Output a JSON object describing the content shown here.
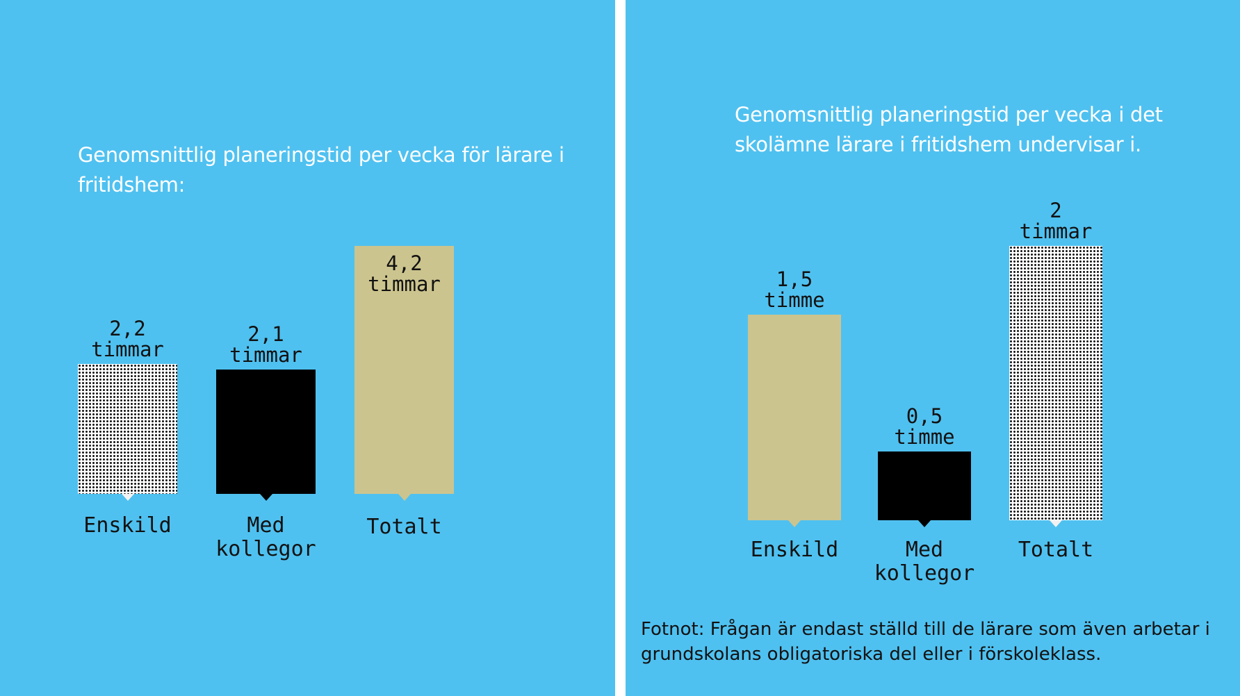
{
  "chart_data": [
    {
      "type": "bar",
      "title": "Genomsnittlig planeringstid per vecka för lärare i fritidshem:",
      "categories": [
        "Enskild",
        "Med\nkollegor",
        "Totalt"
      ],
      "values": [
        2.2,
        2.1,
        4.2
      ],
      "value_numbers": [
        "2,2",
        "2,1",
        "4,2"
      ],
      "value_units": [
        "timmar",
        "timmar",
        "timmar"
      ],
      "bar_styles": [
        "dots",
        "black",
        "tan"
      ],
      "ylim": [
        0,
        4.2
      ],
      "grid": false,
      "legend": "none"
    },
    {
      "type": "bar",
      "title": "Genomsnittlig planeringstid per vecka i det skolämne lärare i fritidshem undervisar i.",
      "categories": [
        "Enskild",
        "Med\nkollegor",
        "Totalt"
      ],
      "values": [
        1.5,
        0.5,
        2
      ],
      "value_numbers": [
        "1,5",
        "0,5",
        "2"
      ],
      "value_units": [
        "timme",
        "timme",
        "timmar"
      ],
      "bar_styles": [
        "tan",
        "black",
        "dots"
      ],
      "ylim": [
        0,
        2
      ],
      "grid": false,
      "legend": "none",
      "footnote": "Fotnot: Frågan är endast ställd till de lärare som även arbetar i grundskolans obligatoriska del eller i förskoleklass."
    }
  ],
  "colors": {
    "background": "#4fc1f0",
    "tan": "#ccc48e",
    "black": "#000000",
    "dots": "#111111",
    "title_text": "#ffffff"
  }
}
